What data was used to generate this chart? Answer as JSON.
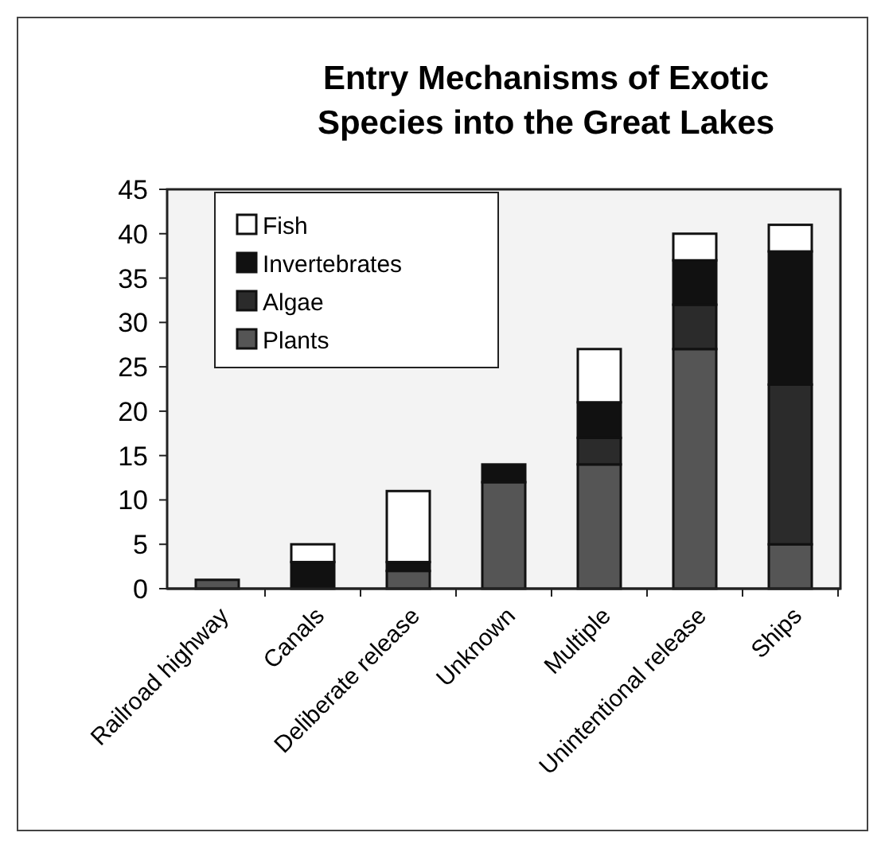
{
  "chart_data": {
    "type": "bar",
    "title": "Entry Mechanisms of Exotic Species into the Great Lakes",
    "categories": [
      "Railroad highway",
      "Canals",
      "Deliberate release",
      "Unknown",
      "Multiple",
      "Unintentional release",
      "Ships"
    ],
    "series": [
      {
        "name": "Plants",
        "color": "#555555",
        "values": [
          1,
          0,
          2,
          12,
          14,
          27,
          5
        ]
      },
      {
        "name": "Algae",
        "color": "#2b2b2b",
        "values": [
          0,
          0,
          0,
          0,
          3,
          5,
          18
        ]
      },
      {
        "name": "Invertebrates",
        "color": "#111111",
        "values": [
          0,
          3,
          1,
          2,
          4,
          5,
          15
        ]
      },
      {
        "name": "Fish",
        "color": "#ffffff",
        "values": [
          0,
          2,
          8,
          0,
          6,
          3,
          3
        ]
      }
    ],
    "stacked": true,
    "ylim": [
      0,
      45
    ],
    "yticks": [
      0,
      5,
      10,
      15,
      20,
      25,
      30,
      35,
      40,
      45
    ],
    "legend": "top left"
  }
}
